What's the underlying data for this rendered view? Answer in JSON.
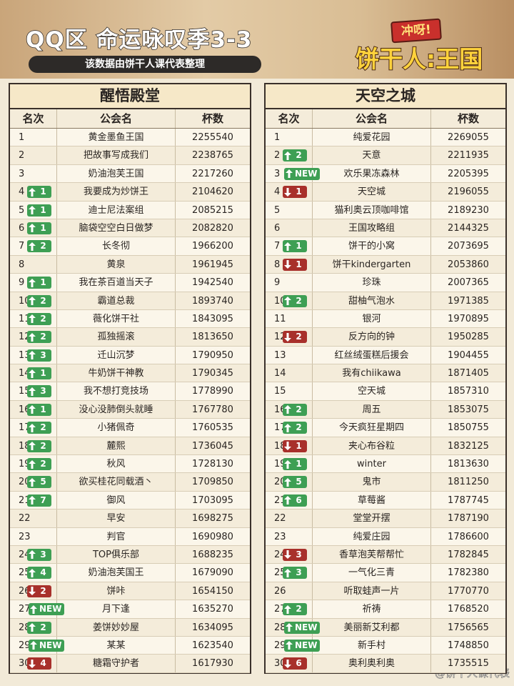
{
  "header": {
    "title": "QQ区 命运咏叹季3-3",
    "subtitle": "该数据由饼干人课代表整理",
    "logo_top": "冲呀!",
    "logo_main": "饼干人:王国"
  },
  "tables": [
    {
      "title": "醒悟殿堂",
      "columns": [
        "名次",
        "公会名",
        "杯数"
      ],
      "rows": [
        {
          "rank": 1,
          "name": "黄金墨鱼王国",
          "cups": 2255540
        },
        {
          "rank": 2,
          "name": "把故事写成我们",
          "cups": 2238765
        },
        {
          "rank": 3,
          "name": "奶油泡芙王国",
          "cups": 2217260
        },
        {
          "rank": 4,
          "change": {
            "dir": "up",
            "label": 1
          },
          "name": "我要成为炒饼王",
          "cups": 2104620
        },
        {
          "rank": 5,
          "change": {
            "dir": "up",
            "label": 1
          },
          "name": "迪士尼法案组",
          "cups": 2085215
        },
        {
          "rank": 6,
          "change": {
            "dir": "up",
            "label": 1
          },
          "name": "脑袋空空白日做梦",
          "cups": 2082820
        },
        {
          "rank": 7,
          "change": {
            "dir": "up",
            "label": 2
          },
          "name": "长冬彻",
          "cups": 1966200
        },
        {
          "rank": 8,
          "name": "黄泉",
          "cups": 1961945
        },
        {
          "rank": 9,
          "change": {
            "dir": "up",
            "label": 1
          },
          "name": "我在茶百道当天子",
          "cups": 1942540
        },
        {
          "rank": 10,
          "change": {
            "dir": "up",
            "label": 2
          },
          "name": "霸道总裁",
          "cups": 1893740
        },
        {
          "rank": 11,
          "change": {
            "dir": "up",
            "label": 2
          },
          "name": "薇化饼干社",
          "cups": 1843095
        },
        {
          "rank": 12,
          "change": {
            "dir": "up",
            "label": 2
          },
          "name": "孤独摇滚",
          "cups": 1813650
        },
        {
          "rank": 13,
          "change": {
            "dir": "up",
            "label": 3
          },
          "name": "迁山沉梦",
          "cups": 1790950
        },
        {
          "rank": 14,
          "change": {
            "dir": "up",
            "label": 1
          },
          "name": "牛奶饼干神教",
          "cups": 1790345
        },
        {
          "rank": 15,
          "change": {
            "dir": "up",
            "label": 3
          },
          "name": "我不想打竞技场",
          "cups": 1778990
        },
        {
          "rank": 16,
          "change": {
            "dir": "up",
            "label": 1
          },
          "name": "没心没肺倒头就睡",
          "cups": 1767780
        },
        {
          "rank": 17,
          "change": {
            "dir": "up",
            "label": 2
          },
          "name": "小猪佩奇",
          "cups": 1760535
        },
        {
          "rank": 18,
          "change": {
            "dir": "up",
            "label": 2
          },
          "name": "麓熙",
          "cups": 1736045
        },
        {
          "rank": 19,
          "change": {
            "dir": "up",
            "label": 2
          },
          "name": "秋风",
          "cups": 1728130
        },
        {
          "rank": 20,
          "change": {
            "dir": "up",
            "label": 5
          },
          "name": "欲买桂花同载酒丶",
          "cups": 1709850
        },
        {
          "rank": 21,
          "change": {
            "dir": "up",
            "label": 7
          },
          "name": "御风",
          "cups": 1703095
        },
        {
          "rank": 22,
          "name": "早安",
          "cups": 1698275
        },
        {
          "rank": 23,
          "name": "判官",
          "cups": 1690980
        },
        {
          "rank": 24,
          "change": {
            "dir": "up",
            "label": 3
          },
          "name": "TOP俱乐部",
          "cups": 1688235
        },
        {
          "rank": 25,
          "change": {
            "dir": "up",
            "label": 4
          },
          "name": "奶油泡芙国王",
          "cups": 1679090
        },
        {
          "rank": 26,
          "change": {
            "dir": "down",
            "label": 2
          },
          "name": "饼咔",
          "cups": 1654150
        },
        {
          "rank": 27,
          "change": {
            "dir": "up",
            "label": "NEW"
          },
          "name": "月下逢",
          "cups": 1635270
        },
        {
          "rank": 28,
          "change": {
            "dir": "up",
            "label": 2
          },
          "name": "姜饼妙妙屋",
          "cups": 1634095
        },
        {
          "rank": 29,
          "change": {
            "dir": "up",
            "label": "NEW"
          },
          "name": "某某",
          "cups": 1623540
        },
        {
          "rank": 30,
          "change": {
            "dir": "down",
            "label": 4
          },
          "name": "糖霜守护者",
          "cups": 1617930
        }
      ]
    },
    {
      "title": "天空之城",
      "columns": [
        "名次",
        "公会名",
        "杯数"
      ],
      "rows": [
        {
          "rank": 1,
          "name": "纯爱花园",
          "cups": 2269055
        },
        {
          "rank": 2,
          "change": {
            "dir": "up",
            "label": 2
          },
          "name": "天意",
          "cups": 2211935
        },
        {
          "rank": 3,
          "change": {
            "dir": "up",
            "label": "NEW"
          },
          "name": "欢乐果冻森林",
          "cups": 2205395
        },
        {
          "rank": 4,
          "change": {
            "dir": "down",
            "label": 1
          },
          "name": "天空城",
          "cups": 2196055
        },
        {
          "rank": 5,
          "name": "猫利奥云顶咖啡馆",
          "cups": 2189230
        },
        {
          "rank": 6,
          "name": "王国攻略组",
          "cups": 2144325
        },
        {
          "rank": 7,
          "change": {
            "dir": "up",
            "label": 1
          },
          "name": "饼干的小窝",
          "cups": 2073695
        },
        {
          "rank": 8,
          "change": {
            "dir": "down",
            "label": 1
          },
          "name": "饼干kindergarten",
          "cups": 2053860
        },
        {
          "rank": 9,
          "name": "珍珠",
          "cups": 2007365
        },
        {
          "rank": 10,
          "change": {
            "dir": "up",
            "label": 2
          },
          "name": "甜柚气泡水",
          "cups": 1971385
        },
        {
          "rank": 11,
          "name": "银河",
          "cups": 1970895
        },
        {
          "rank": 12,
          "change": {
            "dir": "down",
            "label": 2
          },
          "name": "反方向的钟",
          "cups": 1950285
        },
        {
          "rank": 13,
          "name": "红丝绒蛋糕后援会",
          "cups": 1904455
        },
        {
          "rank": 14,
          "name": "我有chiikawa",
          "cups": 1871405
        },
        {
          "rank": 15,
          "name": "空天城",
          "cups": 1857310
        },
        {
          "rank": 16,
          "change": {
            "dir": "up",
            "label": 2
          },
          "name": "周五",
          "cups": 1853075
        },
        {
          "rank": 17,
          "change": {
            "dir": "up",
            "label": 2
          },
          "name": "今天疯狂星期四",
          "cups": 1850755
        },
        {
          "rank": 18,
          "change": {
            "dir": "down",
            "label": 1
          },
          "name": "夹心布谷粒",
          "cups": 1832125
        },
        {
          "rank": 19,
          "change": {
            "dir": "up",
            "label": 1
          },
          "name": "winter",
          "cups": 1813630
        },
        {
          "rank": 20,
          "change": {
            "dir": "up",
            "label": 5
          },
          "name": "鬼市",
          "cups": 1811250
        },
        {
          "rank": 21,
          "change": {
            "dir": "up",
            "label": 6
          },
          "name": "草莓酱",
          "cups": 1787745
        },
        {
          "rank": 22,
          "name": "堂堂开摆",
          "cups": 1787190
        },
        {
          "rank": 23,
          "name": "纯爱庄园",
          "cups": 1786600
        },
        {
          "rank": 24,
          "change": {
            "dir": "down",
            "label": 3
          },
          "name": "香草泡芙帮帮忙",
          "cups": 1782845
        },
        {
          "rank": 25,
          "change": {
            "dir": "up",
            "label": 3
          },
          "name": "一气化三青",
          "cups": 1782380
        },
        {
          "rank": 26,
          "name": "听取蛙声一片",
          "cups": 1770770
        },
        {
          "rank": 27,
          "change": {
            "dir": "up",
            "label": 2
          },
          "name": "祈祷",
          "cups": 1768520
        },
        {
          "rank": 28,
          "change": {
            "dir": "up",
            "label": "NEW"
          },
          "name": "美丽新艾利都",
          "cups": 1756565
        },
        {
          "rank": 29,
          "change": {
            "dir": "up",
            "label": "NEW"
          },
          "name": "新手村",
          "cups": 1748850
        },
        {
          "rank": 30,
          "change": {
            "dir": "down",
            "label": 6
          },
          "name": "奥利奥利奥",
          "cups": 1735515
        }
      ]
    }
  ],
  "watermark": "@饼干人课代表"
}
